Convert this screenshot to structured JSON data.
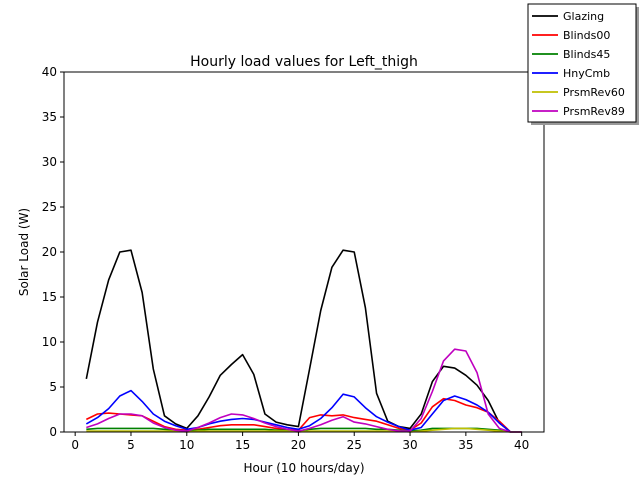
{
  "chart_data": {
    "type": "line",
    "title": "Hourly load values for Left_thigh",
    "xlabel": "Hour (10 hours/day)",
    "ylabel": "Solar Load (W)",
    "xlim": [
      -1,
      42
    ],
    "ylim": [
      0,
      40
    ],
    "xticks": [
      0,
      5,
      10,
      15,
      20,
      25,
      30,
      35,
      40
    ],
    "yticks": [
      0,
      5,
      10,
      15,
      20,
      25,
      30,
      35,
      40
    ],
    "grid": false,
    "legend_position": "top-right (outside plot)",
    "x": [
      1,
      2,
      3,
      4,
      5,
      6,
      7,
      8,
      9,
      10,
      11,
      12,
      13,
      14,
      15,
      16,
      17,
      18,
      19,
      20,
      21,
      22,
      23,
      24,
      25,
      26,
      27,
      28,
      29,
      30,
      31,
      32,
      33,
      34,
      35,
      36,
      37,
      38,
      39,
      40
    ],
    "series": [
      {
        "name": "Glazing",
        "color": "#000000",
        "values": [
          5.9,
          12.2,
          16.9,
          20.0,
          20.2,
          15.5,
          7.0,
          1.8,
          0.9,
          0.4,
          1.8,
          3.9,
          6.3,
          7.5,
          8.6,
          6.4,
          2.0,
          1.1,
          0.8,
          0.6,
          7.0,
          13.5,
          18.3,
          20.2,
          20.0,
          13.8,
          4.3,
          1.2,
          0.6,
          0.4,
          2.0,
          5.6,
          7.3,
          7.1,
          6.3,
          5.2,
          3.5,
          1.0,
          0.0,
          0.0
        ]
      },
      {
        "name": "Blinds00",
        "color": "#ff0000",
        "values": [
          1.4,
          2.0,
          2.1,
          2.0,
          1.9,
          1.8,
          1.2,
          0.6,
          0.3,
          0.2,
          0.3,
          0.5,
          0.7,
          0.8,
          0.8,
          0.8,
          0.6,
          0.4,
          0.3,
          0.2,
          1.6,
          1.9,
          1.8,
          1.9,
          1.6,
          1.4,
          1.2,
          0.8,
          0.4,
          0.2,
          1.0,
          2.8,
          3.7,
          3.5,
          3.0,
          2.7,
          2.2,
          1.2,
          0.0,
          0.0
        ]
      },
      {
        "name": "Blinds45",
        "color": "#008000",
        "values": [
          0.3,
          0.4,
          0.4,
          0.4,
          0.4,
          0.4,
          0.4,
          0.3,
          0.2,
          0.1,
          0.2,
          0.3,
          0.3,
          0.3,
          0.3,
          0.3,
          0.3,
          0.2,
          0.2,
          0.1,
          0.3,
          0.4,
          0.4,
          0.4,
          0.4,
          0.4,
          0.3,
          0.3,
          0.2,
          0.1,
          0.2,
          0.4,
          0.4,
          0.4,
          0.4,
          0.4,
          0.3,
          0.2,
          0.0,
          0.0
        ]
      },
      {
        "name": "HnyCmb",
        "color": "#0000ff",
        "values": [
          0.9,
          1.6,
          2.6,
          4.0,
          4.6,
          3.4,
          2.0,
          1.2,
          0.7,
          0.3,
          0.5,
          0.9,
          1.2,
          1.4,
          1.5,
          1.4,
          1.1,
          0.8,
          0.5,
          0.3,
          0.7,
          1.5,
          2.7,
          4.2,
          3.9,
          2.7,
          1.7,
          1.1,
          0.6,
          0.2,
          0.5,
          2.0,
          3.5,
          4.0,
          3.6,
          3.0,
          2.2,
          1.0,
          0.0,
          0.0
        ]
      },
      {
        "name": "PrsmRev60",
        "color": "#bfbf00",
        "values": [
          0.1,
          0.1,
          0.1,
          0.1,
          0.1,
          0.1,
          0.1,
          0.1,
          0.1,
          0.0,
          0.1,
          0.1,
          0.1,
          0.1,
          0.1,
          0.1,
          0.1,
          0.1,
          0.1,
          0.0,
          0.1,
          0.1,
          0.1,
          0.1,
          0.1,
          0.1,
          0.1,
          0.1,
          0.1,
          0.0,
          0.1,
          0.2,
          0.3,
          0.4,
          0.4,
          0.3,
          0.2,
          0.1,
          0.0,
          0.0
        ]
      },
      {
        "name": "PrsmRev89",
        "color": "#bf00bf",
        "values": [
          0.5,
          0.9,
          1.5,
          2.0,
          2.0,
          1.8,
          1.0,
          0.5,
          0.2,
          0.1,
          0.5,
          1.0,
          1.6,
          2.0,
          1.9,
          1.5,
          1.0,
          0.6,
          0.3,
          0.1,
          0.4,
          0.8,
          1.3,
          1.7,
          1.1,
          0.9,
          0.6,
          0.3,
          0.1,
          0.1,
          1.5,
          4.5,
          7.9,
          9.2,
          9.0,
          6.6,
          2.0,
          0.4,
          0.0,
          0.0
        ]
      }
    ]
  }
}
